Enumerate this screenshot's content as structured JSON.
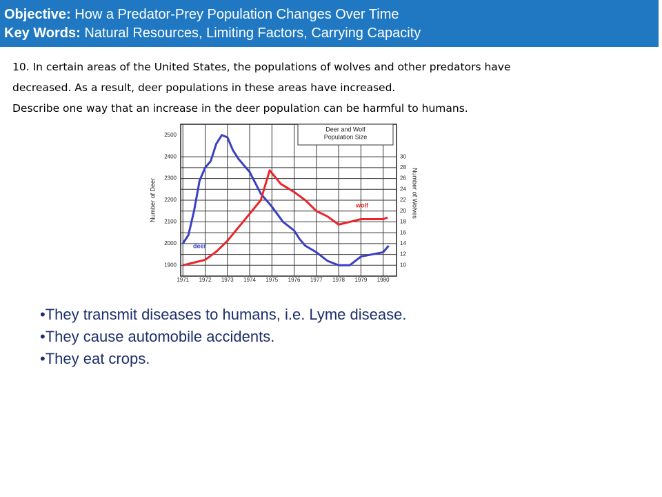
{
  "header": {
    "objective_label": "Objective:",
    "objective": "How a Predator-Prey Population Changes Over Time",
    "keywords_label": "Key Words:",
    "keywords": "Natural Resources, Limiting Factors, Carrying Capacity"
  },
  "question": {
    "lines": [
      "10.  In certain areas of the United States, the populations of wolves and other predators have",
      "decreased. As a result, deer populations in these areas have increased.",
      "Describe one way that an increase in the deer population can be harmful to humans."
    ]
  },
  "chart_data": {
    "type": "line",
    "title": [
      "Deer and Wolf",
      "Population Size"
    ],
    "y_label": "Number of Deer",
    "y2_label": "Number of Wolves",
    "xlim": [
      1970.9,
      1980.6
    ],
    "xticks": [
      1971,
      1972,
      1973,
      1974,
      1975,
      1976,
      1977,
      1978,
      1979,
      1980
    ],
    "ylim": [
      1850,
      2550
    ],
    "yticks": [
      1900,
      2000,
      2100,
      2200,
      2300,
      2400,
      2500
    ],
    "y2lim": [
      8,
      36
    ],
    "y2ticks": [
      10,
      12,
      14,
      16,
      18,
      20,
      22,
      24,
      26,
      28,
      30
    ],
    "grid": true,
    "series": [
      {
        "name": "deer",
        "color": "#3a3fc4",
        "x": [
          1971,
          1971.25,
          1971.5,
          1971.75,
          1972,
          1972.25,
          1972.5,
          1972.75,
          1973,
          1973.25,
          1973.5,
          1973.75,
          1974,
          1974.25,
          1974.5,
          1974.75,
          1975,
          1975.5,
          1976,
          1976.25,
          1976.5,
          1977,
          1977.5,
          1978,
          1978.5,
          1979,
          1979.5,
          1980,
          1980.25
        ],
        "values": [
          2000,
          2040,
          2150,
          2290,
          2350,
          2380,
          2460,
          2500,
          2490,
          2430,
          2390,
          2360,
          2330,
          2280,
          2230,
          2200,
          2170,
          2100,
          2060,
          2020,
          1990,
          1960,
          1920,
          1900,
          1900,
          1940,
          1950,
          1960,
          1990
        ]
      },
      {
        "name": "wolf",
        "color": "#e8262c",
        "axis": "y2",
        "x": [
          1971,
          1971.5,
          1972,
          1972.5,
          1973,
          1973.5,
          1974,
          1974.5,
          1974.9,
          1975.4,
          1976,
          1976.5,
          1977,
          1977.5,
          1978,
          1978.5,
          1979,
          1979.5,
          1980,
          1980.2
        ],
        "values": [
          10,
          10.5,
          11,
          12.5,
          14.5,
          17,
          19.5,
          22,
          27.5,
          25,
          23.5,
          22,
          20,
          19,
          17.5,
          18,
          18.5,
          18.5,
          18.5,
          18.8
        ]
      }
    ]
  },
  "answers": [
    "•They transmit diseases to humans, i.e. Lyme disease.",
    "•They cause automobile accidents.",
    "•They eat crops."
  ]
}
